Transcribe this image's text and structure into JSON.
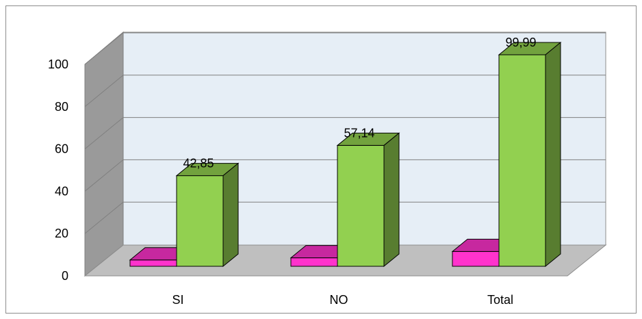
{
  "chart_data": {
    "type": "bar",
    "categories": [
      "SI",
      "NO",
      "Total"
    ],
    "series": [
      {
        "values": [
          3,
          4,
          7
        ],
        "color": "#ff33cc"
      },
      {
        "values": [
          42.85,
          57.14,
          99.99
        ],
        "color": "#92d050"
      }
    ],
    "data_labels": [
      "42,85",
      "57,14",
      "99,99"
    ],
    "y_ticks": [
      "0",
      "20",
      "40",
      "60",
      "80",
      "100"
    ],
    "ylim": [
      0,
      100
    ],
    "grid": true,
    "style": "3d"
  }
}
